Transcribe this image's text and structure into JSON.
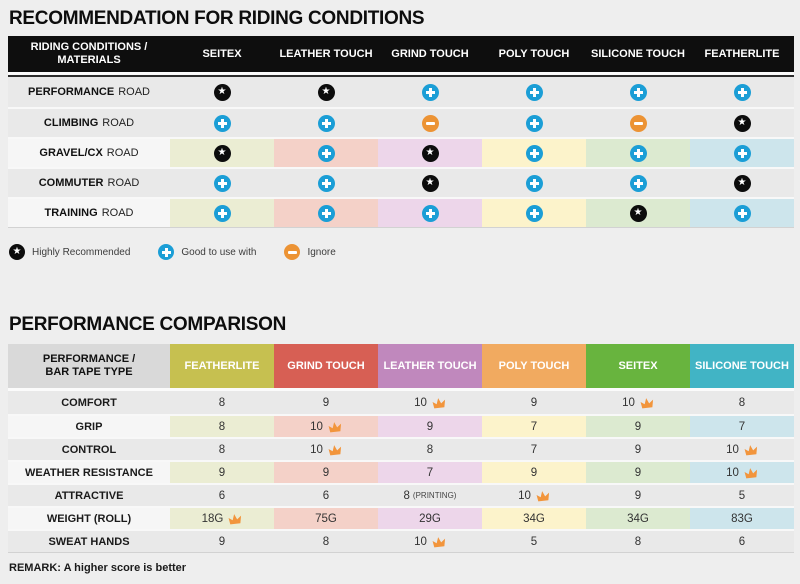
{
  "table1": {
    "title": "RECOMMENDATION FOR RIDING CONDITIONS",
    "header": {
      "label": "RIDING CONDITIONS /\nMATERIALS",
      "columns": [
        "SEITEX",
        "LEATHER TOUCH",
        "GRIND TOUCH",
        "POLY TOUCH",
        "SILICONE TOUCH",
        "FEATHERLITE"
      ]
    },
    "rows": [
      {
        "label_bold": "PERFORMANCE",
        "label_rest": "ROAD",
        "tinted": false,
        "cells": [
          "star",
          "star",
          "plus",
          "plus",
          "plus",
          "plus"
        ]
      },
      {
        "label_bold": "CLIMBING",
        "label_rest": "ROAD",
        "tinted": false,
        "cells": [
          "plus",
          "plus",
          "minus",
          "plus",
          "minus",
          "star"
        ]
      },
      {
        "label_bold": "GRAVEL/CX",
        "label_rest": "ROAD",
        "tinted": true,
        "cells": [
          "star",
          "plus",
          "star",
          "plus",
          "plus",
          "plus"
        ]
      },
      {
        "label_bold": "COMMUTER",
        "label_rest": "ROAD",
        "tinted": false,
        "cells": [
          "plus",
          "plus",
          "star",
          "plus",
          "plus",
          "star"
        ]
      },
      {
        "label_bold": "TRAINING",
        "label_rest": "ROAD",
        "tinted": true,
        "cells": [
          "plus",
          "plus",
          "plus",
          "plus",
          "star",
          "plus"
        ]
      }
    ],
    "legend": [
      {
        "icon": "star",
        "label": "Highly Recommended"
      },
      {
        "icon": "plus",
        "label": "Good to use with"
      },
      {
        "icon": "minus",
        "label": "Ignore"
      }
    ]
  },
  "table2": {
    "title": "PERFORMANCE COMPARISON",
    "header": {
      "label": "PERFORMANCE /\nBAR TAPE TYPE",
      "columns": [
        {
          "label": "FEATHERLITE",
          "color": "#c6c050"
        },
        {
          "label": "GRIND TOUCH",
          "color": "#d75f54"
        },
        {
          "label": "LEATHER TOUCH",
          "color": "#c088bd"
        },
        {
          "label": "POLY TOUCH",
          "color": "#f1aa60"
        },
        {
          "label": "SEITEX",
          "color": "#68b43e"
        },
        {
          "label": "SILICONE TOUCH",
          "color": "#41b4c5"
        }
      ]
    },
    "rows": [
      {
        "label": "COMFORT",
        "tinted": false,
        "cells": [
          {
            "value": "8"
          },
          {
            "value": "9"
          },
          {
            "value": "10",
            "crown": true
          },
          {
            "value": "9"
          },
          {
            "value": "10",
            "crown": true
          },
          {
            "value": "8"
          }
        ]
      },
      {
        "label": "GRIP",
        "tinted": true,
        "cells": [
          {
            "value": "8"
          },
          {
            "value": "10",
            "crown": true
          },
          {
            "value": "9"
          },
          {
            "value": "7"
          },
          {
            "value": "9"
          },
          {
            "value": "7"
          }
        ]
      },
      {
        "label": "CONTROL",
        "tinted": false,
        "cells": [
          {
            "value": "8"
          },
          {
            "value": "10",
            "crown": true
          },
          {
            "value": "8"
          },
          {
            "value": "7"
          },
          {
            "value": "9"
          },
          {
            "value": "10",
            "crown": true
          }
        ]
      },
      {
        "label": "WEATHER RESISTANCE",
        "tinted": true,
        "cells": [
          {
            "value": "9"
          },
          {
            "value": "9"
          },
          {
            "value": "7"
          },
          {
            "value": "9"
          },
          {
            "value": "9"
          },
          {
            "value": "10",
            "crown": true
          }
        ]
      },
      {
        "label": "ATTRACTIVE",
        "tinted": false,
        "cells": [
          {
            "value": "6"
          },
          {
            "value": "6"
          },
          {
            "value": "8",
            "suffix": "(PRINTING)"
          },
          {
            "value": "10",
            "crown": true
          },
          {
            "value": "9"
          },
          {
            "value": "5"
          }
        ]
      },
      {
        "label": "WEIGHT (ROLL)",
        "tinted": true,
        "cells": [
          {
            "value": "18G",
            "crown": true
          },
          {
            "value": "75G"
          },
          {
            "value": "29G"
          },
          {
            "value": "34G"
          },
          {
            "value": "34G"
          },
          {
            "value": "83G"
          }
        ]
      },
      {
        "label": "SWEAT HANDS",
        "tinted": false,
        "cells": [
          {
            "value": "9"
          },
          {
            "value": "8"
          },
          {
            "value": "10",
            "crown": true
          },
          {
            "value": "5"
          },
          {
            "value": "8"
          },
          {
            "value": "6"
          }
        ]
      }
    ],
    "remark": "REMARK: A higher score is better"
  },
  "colors": {
    "page_bg": "#eeeeee",
    "header_black": "#0e0e0e",
    "tints": [
      "#ebedd3",
      "#f4d1c8",
      "#edd6ea",
      "#fcf3cb",
      "#dcead0",
      "#cde5ec"
    ],
    "icon_blue": "#1b9ed6",
    "icon_orange": "#ec9334",
    "crown_orange": "#f2953c"
  }
}
